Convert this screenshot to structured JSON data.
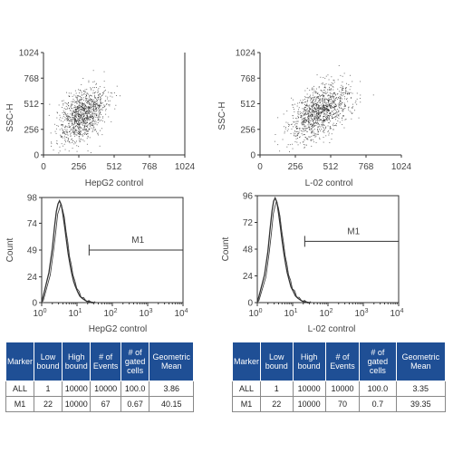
{
  "colors": {
    "table_header_bg": "#1f4f95",
    "table_header_fg": "#ffffff",
    "dot": "#222222",
    "line": "#333333"
  },
  "chart_data": [
    {
      "type": "scatter",
      "title": "",
      "xlabel": "HepG2 control",
      "ylabel": "SSC-H",
      "xlim": [
        0,
        1024
      ],
      "ylim": [
        0,
        1024
      ],
      "x_ticks": [
        "0",
        "256",
        "512",
        "768",
        "1024"
      ],
      "y_ticks": [
        "0",
        "256",
        "512",
        "768",
        "1024"
      ],
      "cloud": {
        "center_x": 280,
        "center_y": 400,
        "spread_x": 85,
        "spread_y": 140,
        "correlation": 0.45,
        "n_points": 1100
      }
    },
    {
      "type": "scatter",
      "title": "",
      "xlabel": "L-02 control",
      "ylabel": "SSC-H",
      "xlim": [
        0,
        1024
      ],
      "ylim": [
        0,
        1024
      ],
      "x_ticks": [
        "0",
        "256",
        "512",
        "768",
        "1024"
      ],
      "y_ticks": [
        "0",
        "256",
        "512",
        "768",
        "1024"
      ],
      "cloud": {
        "center_x": 430,
        "center_y": 440,
        "spread_x": 110,
        "spread_y": 130,
        "correlation": 0.5,
        "n_points": 1200
      }
    },
    {
      "type": "line",
      "title": "",
      "xlabel": "HepG2 control",
      "ylabel": "Count",
      "x_scale": "log",
      "xlim": [
        1,
        10000
      ],
      "ylim": [
        0,
        98
      ],
      "y_ticks": [
        "0",
        "24",
        "49",
        "74",
        "98"
      ],
      "x_tick_powers": [
        "0",
        "1",
        "2",
        "3",
        "4"
      ],
      "gate": {
        "label": "M1",
        "from": 22,
        "to": 10000,
        "y": 49
      },
      "series": [
        {
          "x": [
            1,
            1.6,
            2.0,
            2.3,
            2.6,
            2.9,
            3.2,
            3.6,
            4.0,
            4.5,
            5.0,
            5.6,
            6.3,
            7.0,
            8.0,
            9.0,
            10.5,
            12,
            14,
            17,
            20,
            25,
            30
          ],
          "y": [
            0,
            28,
            50,
            70,
            85,
            92,
            95,
            91,
            82,
            70,
            58,
            46,
            36,
            28,
            20,
            15,
            10,
            6,
            4,
            2,
            1,
            0.5,
            0
          ]
        }
      ]
    },
    {
      "type": "line",
      "title": "",
      "xlabel": "L-02 control",
      "ylabel": "Count",
      "x_scale": "log",
      "xlim": [
        1,
        10000
      ],
      "ylim": [
        0,
        96
      ],
      "y_ticks": [
        "0",
        "24",
        "48",
        "72",
        "96"
      ],
      "x_tick_powers": [
        "0",
        "1",
        "2",
        "3",
        "4"
      ],
      "gate": {
        "label": "M1",
        "from": 22,
        "to": 10000,
        "y": 55
      },
      "series": [
        {
          "x": [
            1,
            1.6,
            2.0,
            2.3,
            2.6,
            2.9,
            3.2,
            3.6,
            4.0,
            4.5,
            5.0,
            5.6,
            6.3,
            7.0,
            8.0,
            9.0,
            10.5,
            12,
            14,
            17,
            20,
            25,
            30
          ],
          "y": [
            0,
            25,
            46,
            66,
            82,
            91,
            94,
            90,
            80,
            68,
            56,
            45,
            35,
            27,
            20,
            14,
            10,
            6,
            4,
            2,
            1,
            0.5,
            0
          ]
        }
      ]
    },
    {
      "type": "table",
      "columns": [
        "Marker",
        "Low bound",
        "High bound",
        "# of Events",
        "# of gated cells",
        "Geometric Mean"
      ],
      "rows": [
        [
          "ALL",
          "1",
          "10000",
          "10000",
          "100.0",
          "3.86"
        ],
        [
          "M1",
          "22",
          "10000",
          "67",
          "0.67",
          "40.15"
        ]
      ]
    },
    {
      "type": "table",
      "columns": [
        "Marker",
        "Low bound",
        "High bound",
        "# of Events",
        "# of gated cells",
        "Geometric Mean"
      ],
      "rows": [
        [
          "ALL",
          "1",
          "10000",
          "10000",
          "100.0",
          "3.35"
        ],
        [
          "M1",
          "22",
          "10000",
          "70",
          "0.7",
          "39.35"
        ]
      ]
    }
  ]
}
